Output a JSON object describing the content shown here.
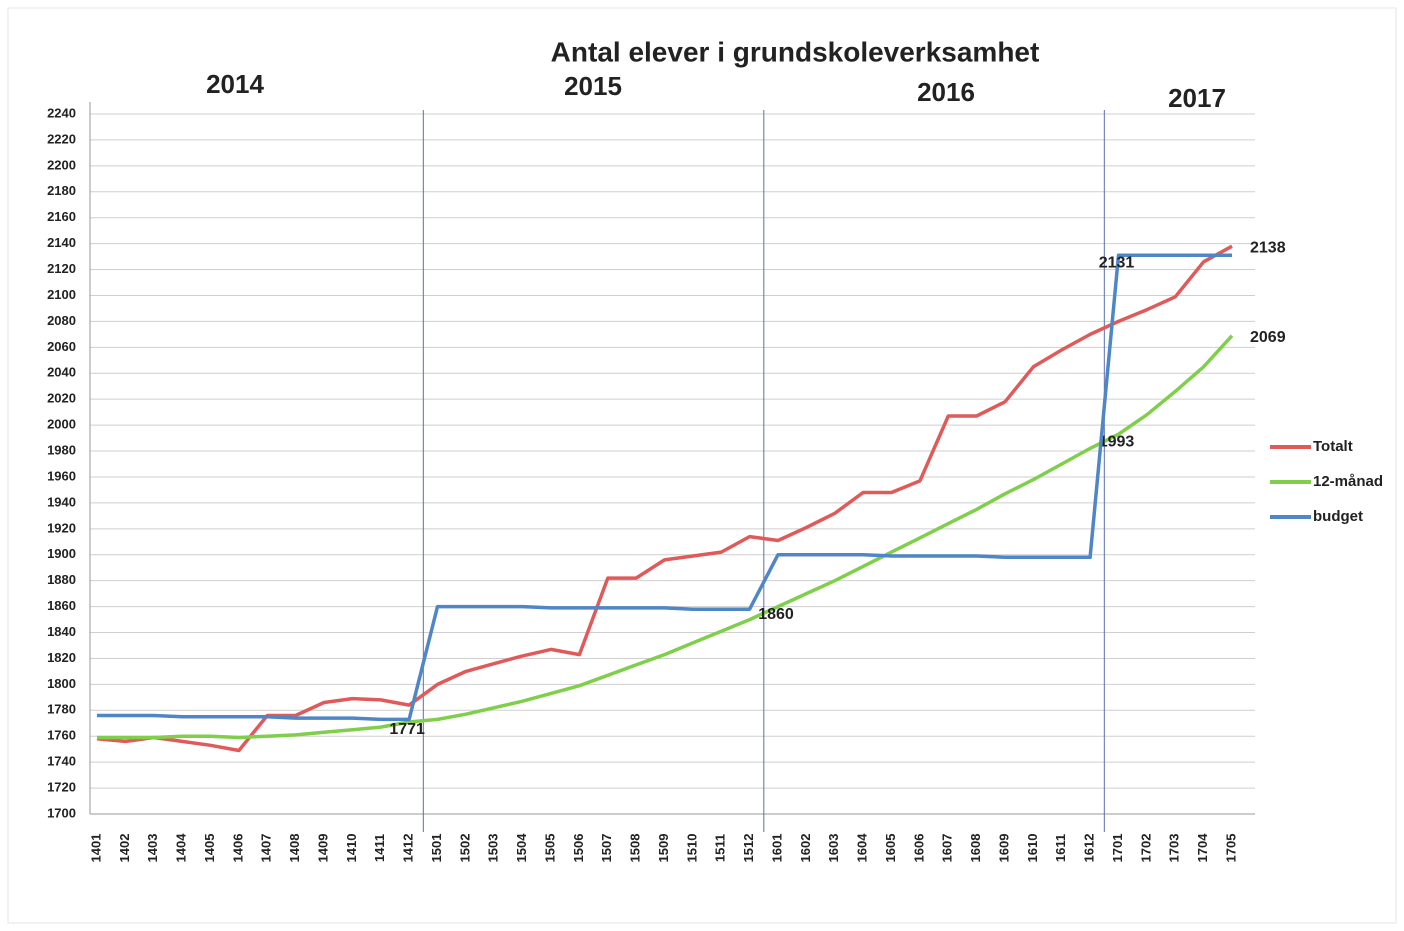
{
  "chart_data": {
    "type": "line",
    "title": "Antal elever i grundskoleverksamhet",
    "year_labels": [
      "2014",
      "2015",
      "2016",
      "2017"
    ],
    "categories": [
      "1401",
      "1402",
      "1403",
      "1404",
      "1405",
      "1406",
      "1407",
      "1408",
      "1409",
      "1410",
      "1411",
      "1412",
      "1501",
      "1502",
      "1503",
      "1504",
      "1505",
      "1506",
      "1507",
      "1508",
      "1509",
      "1510",
      "1511",
      "1512",
      "1601",
      "1602",
      "1603",
      "1604",
      "1605",
      "1606",
      "1607",
      "1608",
      "1609",
      "1610",
      "1611",
      "1612",
      "1701",
      "1702",
      "1703",
      "1704",
      "1705"
    ],
    "series": [
      {
        "name": "Totalt",
        "color": "#e05a5a",
        "values": [
          1758,
          1756,
          1759,
          1756,
          1753,
          1749,
          1776,
          1776,
          1786,
          1789,
          1788,
          1784,
          1800,
          1810,
          1816,
          1822,
          1827,
          1823,
          1882,
          1882,
          1896,
          1899,
          1902,
          1914,
          1911,
          1921,
          1932,
          1948,
          1948,
          1957,
          2007,
          2007,
          2018,
          2045,
          2058,
          2070,
          2080,
          2089,
          2099,
          2126,
          2138
        ],
        "value_labels": [
          null,
          null,
          null,
          null,
          null,
          null,
          null,
          null,
          null,
          null,
          null,
          null,
          null,
          null,
          null,
          null,
          null,
          null,
          null,
          null,
          null,
          null,
          null,
          null,
          null,
          null,
          null,
          null,
          null,
          null,
          null,
          null,
          null,
          null,
          null,
          null,
          null,
          null,
          null,
          null,
          "2138"
        ]
      },
      {
        "name": "12-månad",
        "color": "#7fcf4a",
        "values": [
          1759,
          1759,
          1759,
          1760,
          1760,
          1759,
          1760,
          1761,
          1763,
          1765,
          1767,
          1771,
          1773,
          1777,
          1782,
          1787,
          1793,
          1799,
          1807,
          1815,
          1823,
          1832,
          1841,
          1850,
          1860,
          1870,
          1880,
          1891,
          1902,
          1913,
          1924,
          1935,
          1947,
          1958,
          1970,
          1982,
          1993,
          2008,
          2026,
          2045,
          2069
        ],
        "value_labels": [
          null,
          null,
          null,
          null,
          null,
          null,
          null,
          null,
          null,
          null,
          null,
          "1771",
          null,
          null,
          null,
          null,
          null,
          null,
          null,
          null,
          null,
          null,
          null,
          null,
          "1860",
          null,
          null,
          null,
          null,
          null,
          null,
          null,
          null,
          null,
          null,
          null,
          "1993",
          null,
          null,
          null,
          "2069"
        ]
      },
      {
        "name": "budget",
        "color": "#4f86c6",
        "values": [
          1776,
          1776,
          1776,
          1775,
          1775,
          1775,
          1775,
          1774,
          1774,
          1774,
          1773,
          1773,
          1860,
          1860,
          1860,
          1860,
          1859,
          1859,
          1859,
          1859,
          1859,
          1858,
          1858,
          1858,
          1900,
          1900,
          1900,
          1900,
          1899,
          1899,
          1899,
          1899,
          1898,
          1898,
          1898,
          1898,
          2131,
          2131,
          2131,
          2131,
          2131
        ],
        "value_labels": [
          null,
          null,
          null,
          null,
          null,
          null,
          null,
          null,
          null,
          null,
          null,
          null,
          null,
          null,
          null,
          null,
          null,
          null,
          null,
          null,
          null,
          null,
          null,
          null,
          null,
          null,
          null,
          null,
          null,
          null,
          null,
          null,
          null,
          null,
          null,
          null,
          "2131",
          null,
          null,
          null,
          null
        ]
      }
    ],
    "ylim": [
      1700,
      2240
    ],
    "yticks": [
      1700,
      1720,
      1740,
      1760,
      1780,
      1800,
      1820,
      1840,
      1860,
      1880,
      1900,
      1920,
      1940,
      1960,
      1980,
      2000,
      2020,
      2040,
      2060,
      2080,
      2100,
      2120,
      2140,
      2160,
      2180,
      2200,
      2220,
      2240
    ],
    "grid": true,
    "legend": "right"
  }
}
